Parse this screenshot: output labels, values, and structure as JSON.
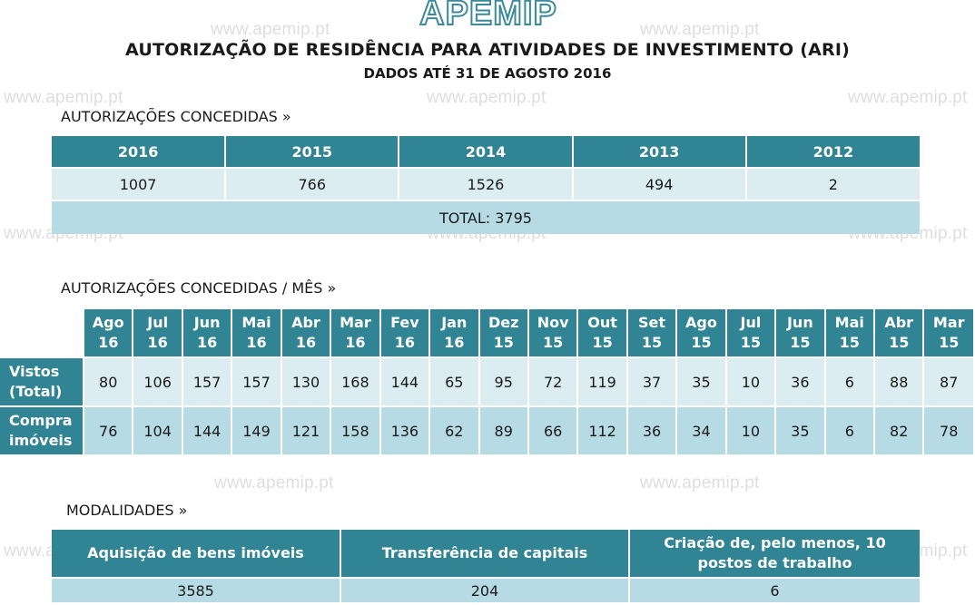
{
  "watermark": "www.apemip.pt",
  "logo": "APEMIP",
  "title": "AUTORIZAÇÃO DE RESIDÊNCIA PARA ATIVIDADES DE INVESTIMENTO (ARI)",
  "subtitle": "DADOS ATÉ 31 DE AGOSTO 2016",
  "section1": {
    "label": "AUTORIZAÇÕES CONCEDIDAS »",
    "headers": [
      "2016",
      "2015",
      "2014",
      "2013",
      "2012"
    ],
    "values": [
      "1007",
      "766",
      "1526",
      "494",
      "2"
    ],
    "total": "TOTAL: 3795"
  },
  "section2": {
    "label": "AUTORIZAÇÕES CONCEDIDAS / MÊS »",
    "months": [
      [
        "Ago",
        "16"
      ],
      [
        "Jul",
        "16"
      ],
      [
        "Jun",
        "16"
      ],
      [
        "Mai",
        "16"
      ],
      [
        "Abr",
        "16"
      ],
      [
        "Mar",
        "16"
      ],
      [
        "Fev",
        "16"
      ],
      [
        "Jan",
        "16"
      ],
      [
        "Dez",
        "15"
      ],
      [
        "Nov",
        "15"
      ],
      [
        "Out",
        "15"
      ],
      [
        "Set",
        "15"
      ],
      [
        "Ago",
        "15"
      ],
      [
        "Jul",
        "15"
      ],
      [
        "Jun",
        "15"
      ],
      [
        "Mai",
        "15"
      ],
      [
        "Abr",
        "15"
      ],
      [
        "Mar",
        "15"
      ]
    ],
    "rows": [
      {
        "label": [
          "Vistos",
          "(Total)"
        ],
        "values": [
          "80",
          "106",
          "157",
          "157",
          "130",
          "168",
          "144",
          "65",
          "95",
          "72",
          "119",
          "37",
          "35",
          "10",
          "36",
          "6",
          "88",
          "87"
        ]
      },
      {
        "label": [
          "Compra",
          "imóveis"
        ],
        "values": [
          "76",
          "104",
          "144",
          "149",
          "121",
          "158",
          "136",
          "62",
          "89",
          "66",
          "112",
          "36",
          "34",
          "10",
          "35",
          "6",
          "82",
          "78"
        ]
      }
    ]
  },
  "section3": {
    "label": "MODALIDADES »",
    "headers": [
      "Aquisição de bens imóveis",
      "Transferência de capitais",
      "Criação de, pelo menos, 10 postos de trabalho"
    ],
    "values": [
      "3585",
      "204",
      "6"
    ]
  },
  "colors": {
    "header": "#318493",
    "row_light": "#dcedf2",
    "row_medium": "#b7dbe5",
    "logo_stroke": "#3b8a9a"
  }
}
